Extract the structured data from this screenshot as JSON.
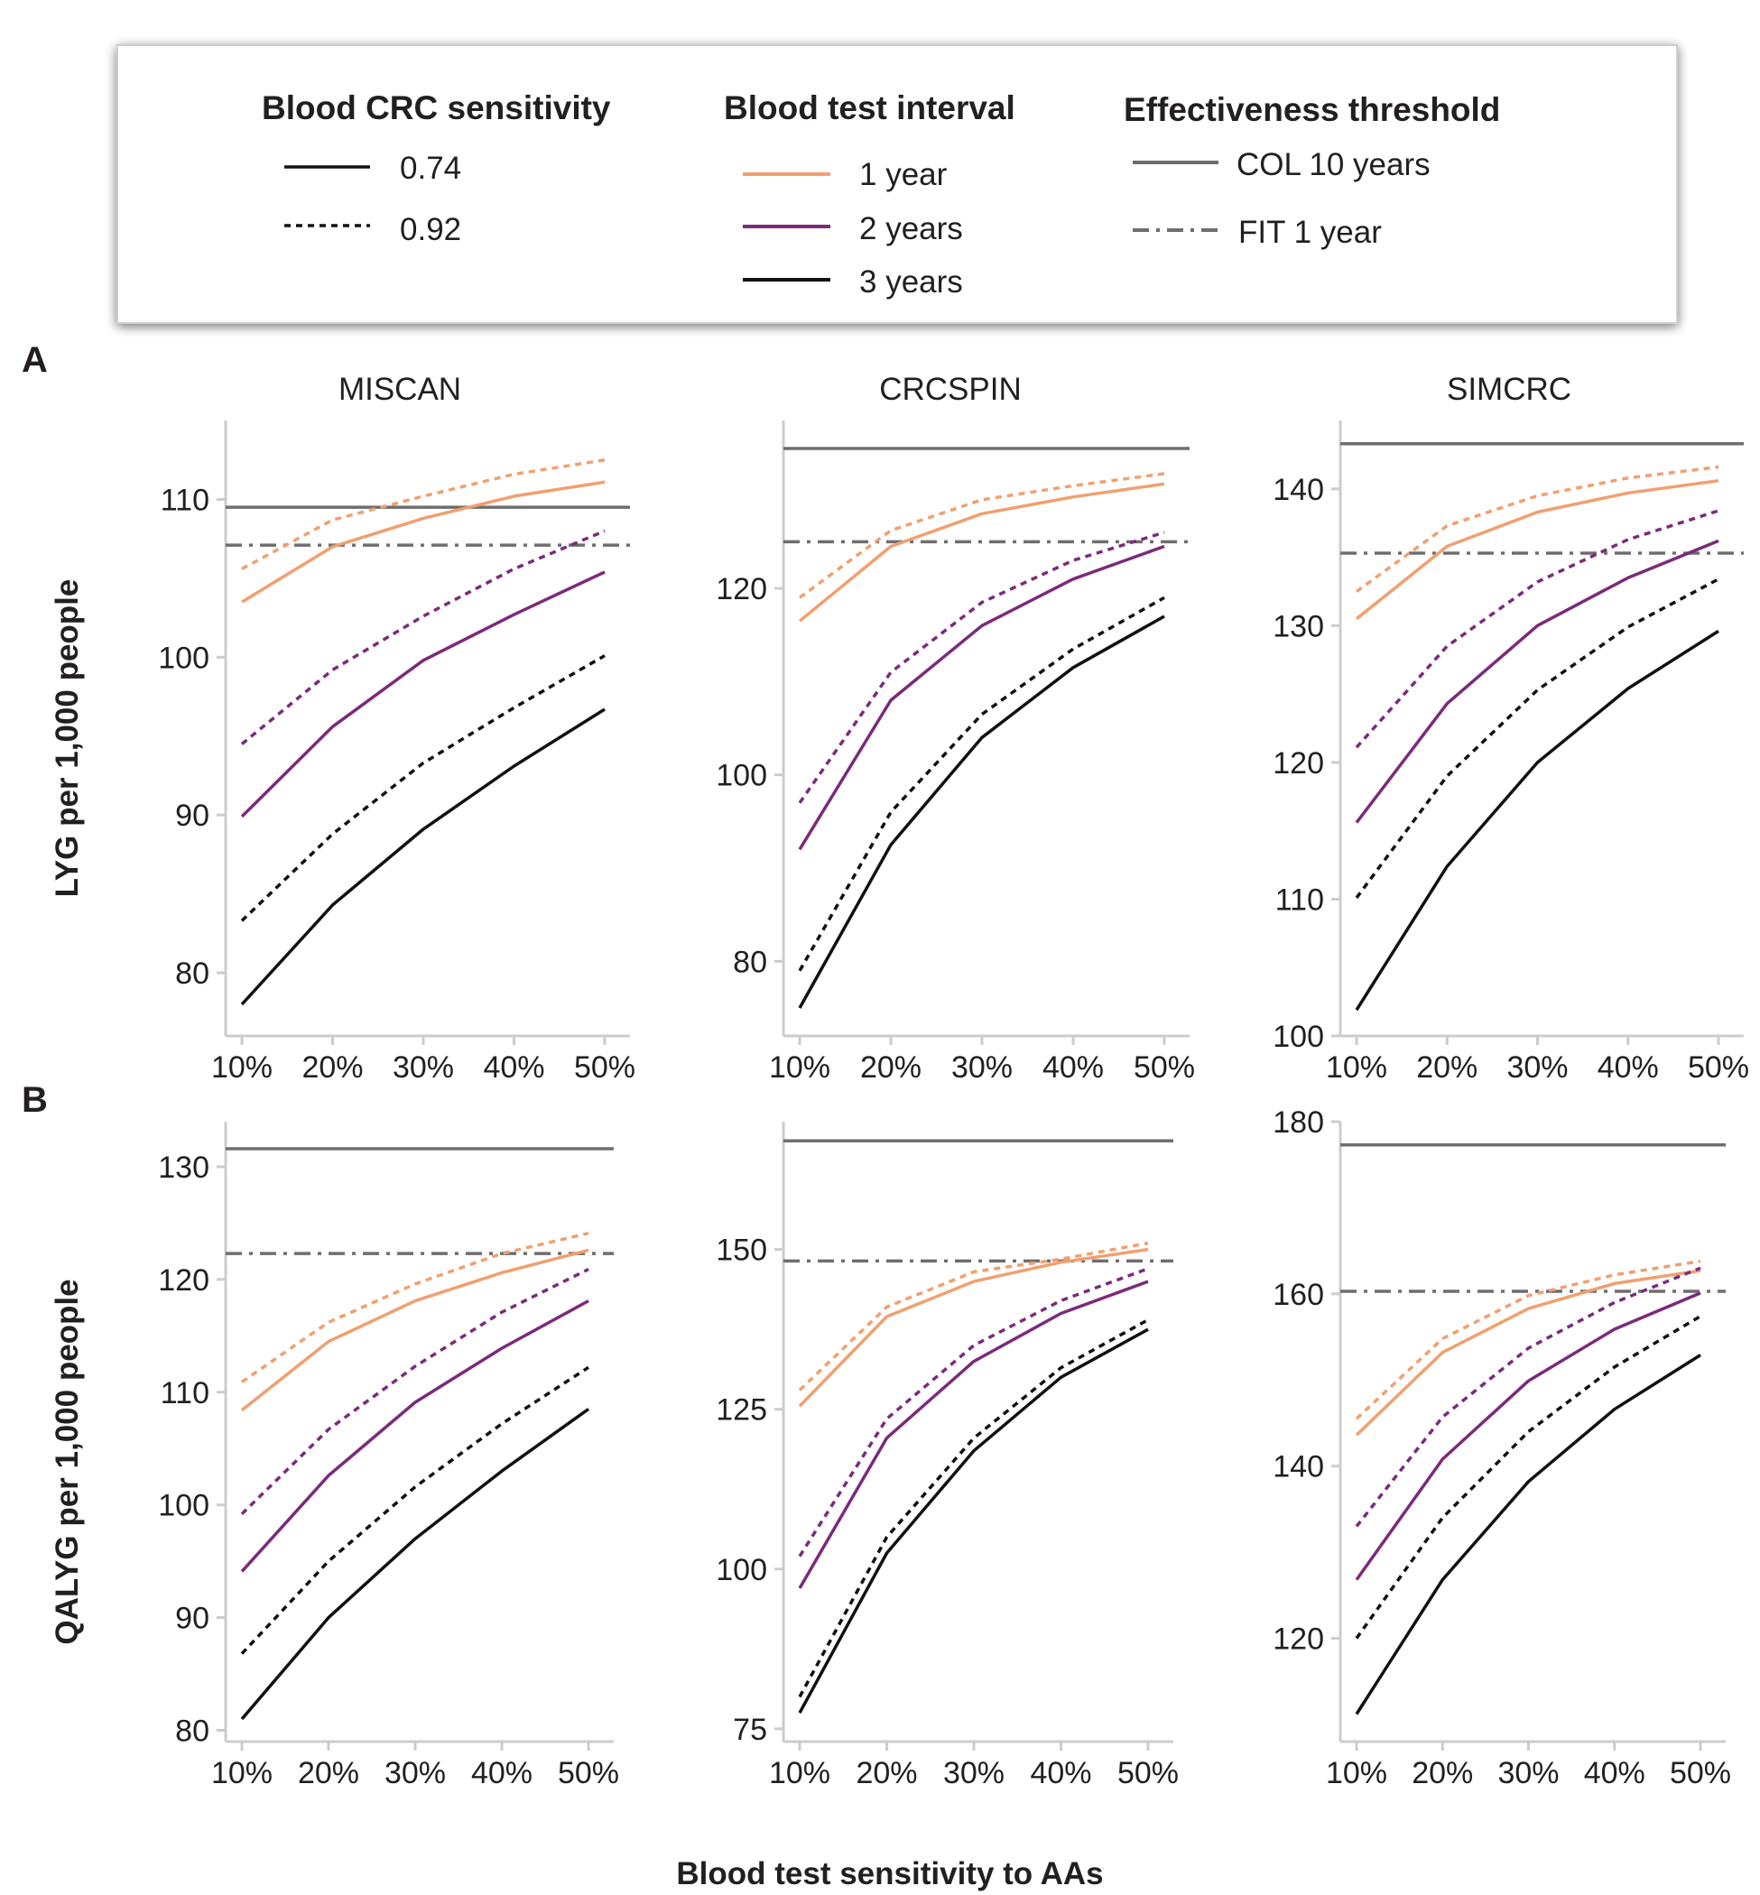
{
  "legend": {
    "crc_title": "Blood CRC sensitivity",
    "crc_items": [
      {
        "label": "0.74",
        "dash": "solid"
      },
      {
        "label": "0.92",
        "dash": "dotted"
      }
    ],
    "interval_title": "Blood test interval",
    "interval_items": [
      {
        "label": "1 year",
        "color": "#f0a070"
      },
      {
        "label": "2 years",
        "color": "#7b2b7a"
      },
      {
        "label": "3 years",
        "color": "#111111"
      }
    ],
    "threshold_title": "Effectiveness threshold",
    "threshold_items": [
      {
        "label": "COL 10 years",
        "dash": "solid"
      },
      {
        "label": "FIT 1 year",
        "dash": "dashdot"
      }
    ]
  },
  "colors": {
    "one_year": "#f0a070",
    "two_years": "#7b2b7a",
    "three_years": "#111111",
    "threshold": "#6e6e6e",
    "axis": "#cccccc"
  },
  "xlabel": "Blood test sensitivity to AAs",
  "chart_data": [
    {
      "type": "line",
      "row": "A",
      "model": "MISCAN",
      "ylabel": "LYG per 1,000 people",
      "x": [
        10,
        20,
        30,
        40,
        50
      ],
      "x_tick_labels": [
        "10%",
        "20%",
        "30%",
        "40%",
        "50%"
      ],
      "y_ticks": [
        80,
        90,
        100,
        110
      ],
      "ylim": [
        76,
        115
      ],
      "thresholds": {
        "col_10_years": 109.5,
        "fit_1_year": 107.1
      },
      "series": [
        {
          "interval": "1 year",
          "sensitivity": "0.74",
          "values": [
            103.5,
            107.0,
            108.8,
            110.2,
            111.1
          ]
        },
        {
          "interval": "1 year",
          "sensitivity": "0.92",
          "values": [
            105.6,
            108.7,
            110.2,
            111.6,
            112.5
          ]
        },
        {
          "interval": "2 years",
          "sensitivity": "0.74",
          "values": [
            89.9,
            95.6,
            99.8,
            102.7,
            105.4
          ]
        },
        {
          "interval": "2 years",
          "sensitivity": "0.92",
          "values": [
            94.5,
            99.2,
            102.6,
            105.6,
            108.0
          ]
        },
        {
          "interval": "3 years",
          "sensitivity": "0.74",
          "values": [
            78.0,
            84.3,
            89.1,
            93.1,
            96.7
          ]
        },
        {
          "interval": "3 years",
          "sensitivity": "0.92",
          "values": [
            83.3,
            88.8,
            93.3,
            96.8,
            100.1
          ]
        }
      ]
    },
    {
      "type": "line",
      "row": "A",
      "model": "CRCSPIN",
      "ylabel": "LYG per 1,000 people",
      "x": [
        10,
        20,
        30,
        40,
        50
      ],
      "x_tick_labels": [
        "10%",
        "20%",
        "30%",
        "40%",
        "50%"
      ],
      "y_ticks": [
        80,
        100,
        120
      ],
      "ylim": [
        72,
        138
      ],
      "thresholds": {
        "col_10_years": 135.0,
        "fit_1_year": 125.0
      },
      "series": [
        {
          "interval": "1 year",
          "sensitivity": "0.74",
          "values": [
            116.5,
            124.5,
            128.0,
            129.8,
            131.2
          ]
        },
        {
          "interval": "1 year",
          "sensitivity": "0.92",
          "values": [
            119.0,
            126.2,
            129.5,
            131.0,
            132.3
          ]
        },
        {
          "interval": "2 years",
          "sensitivity": "0.74",
          "values": [
            92.0,
            108.0,
            116.0,
            121.0,
            124.5
          ]
        },
        {
          "interval": "2 years",
          "sensitivity": "0.92",
          "values": [
            97.0,
            111.0,
            118.5,
            123.0,
            126.0
          ]
        },
        {
          "interval": "3 years",
          "sensitivity": "0.74",
          "values": [
            75.0,
            92.5,
            104.0,
            111.5,
            117.0
          ]
        },
        {
          "interval": "3 years",
          "sensitivity": "0.92",
          "values": [
            79.0,
            96.0,
            106.5,
            113.5,
            119.0
          ]
        }
      ]
    },
    {
      "type": "line",
      "row": "A",
      "model": "SIMCRC",
      "ylabel": "LYG per 1,000 people",
      "x": [
        10,
        20,
        30,
        40,
        50
      ],
      "x_tick_labels": [
        "10%",
        "20%",
        "30%",
        "40%",
        "50%"
      ],
      "y_ticks": [
        100,
        110,
        120,
        130,
        140
      ],
      "ylim": [
        100,
        145
      ],
      "thresholds": {
        "col_10_years": 143.3,
        "fit_1_year": 135.3
      },
      "series": [
        {
          "interval": "1 year",
          "sensitivity": "0.74",
          "values": [
            130.5,
            135.8,
            138.3,
            139.7,
            140.6
          ]
        },
        {
          "interval": "1 year",
          "sensitivity": "0.92",
          "values": [
            132.5,
            137.3,
            139.5,
            140.8,
            141.6
          ]
        },
        {
          "interval": "2 years",
          "sensitivity": "0.74",
          "values": [
            115.6,
            124.3,
            130.0,
            133.5,
            136.2
          ]
        },
        {
          "interval": "2 years",
          "sensitivity": "0.92",
          "values": [
            121.1,
            128.5,
            133.2,
            136.3,
            138.4
          ]
        },
        {
          "interval": "3 years",
          "sensitivity": "0.74",
          "values": [
            101.9,
            112.4,
            120.0,
            125.4,
            129.6
          ]
        },
        {
          "interval": "3 years",
          "sensitivity": "0.92",
          "values": [
            110.1,
            119.0,
            125.3,
            129.9,
            133.4
          ]
        }
      ]
    },
    {
      "type": "line",
      "row": "B",
      "model": "MISCAN",
      "ylabel": "QALYG per 1,000 people",
      "x": [
        10,
        20,
        30,
        40,
        50
      ],
      "x_tick_labels": [
        "10%",
        "20%",
        "30%",
        "40%",
        "50%"
      ],
      "y_ticks": [
        80,
        90,
        100,
        110,
        120,
        130
      ],
      "ylim": [
        79,
        134
      ],
      "thresholds": {
        "col_10_years": 131.6,
        "fit_1_year": 122.3
      },
      "series": [
        {
          "interval": "1 year",
          "sensitivity": "0.74",
          "values": [
            108.4,
            114.5,
            118.1,
            120.6,
            122.6
          ]
        },
        {
          "interval": "1 year",
          "sensitivity": "0.92",
          "values": [
            110.9,
            116.2,
            119.6,
            122.3,
            124.1
          ]
        },
        {
          "interval": "2 years",
          "sensitivity": "0.74",
          "values": [
            94.1,
            102.6,
            109.1,
            113.9,
            118.1
          ]
        },
        {
          "interval": "2 years",
          "sensitivity": "0.92",
          "values": [
            99.2,
            106.7,
            112.3,
            117.1,
            120.9
          ]
        },
        {
          "interval": "3 years",
          "sensitivity": "0.74",
          "values": [
            81.0,
            90.0,
            97.0,
            103.0,
            108.5
          ]
        },
        {
          "interval": "3 years",
          "sensitivity": "0.92",
          "values": [
            86.8,
            95.0,
            101.6,
            107.2,
            112.2
          ]
        }
      ]
    },
    {
      "type": "line",
      "row": "B",
      "model": "CRCSPIN",
      "ylabel": "QALYG per 1,000 people",
      "x": [
        10,
        20,
        30,
        40,
        50
      ],
      "x_tick_labels": [
        "10%",
        "20%",
        "30%",
        "40%",
        "50%"
      ],
      "y_ticks": [
        75,
        100,
        125,
        150
      ],
      "ylim": [
        73,
        170
      ],
      "thresholds": {
        "col_10_years": 167.0,
        "fit_1_year": 148.2
      },
      "series": [
        {
          "interval": "1 year",
          "sensitivity": "0.74",
          "values": [
            125.5,
            139.5,
            145.0,
            148.0,
            150.0
          ]
        },
        {
          "interval": "1 year",
          "sensitivity": "0.92",
          "values": [
            128.0,
            141.0,
            146.5,
            148.5,
            151.0
          ]
        },
        {
          "interval": "2 years",
          "sensitivity": "0.74",
          "values": [
            97.0,
            120.5,
            132.5,
            140.0,
            145.0
          ]
        },
        {
          "interval": "2 years",
          "sensitivity": "0.92",
          "values": [
            102.0,
            123.5,
            135.0,
            142.0,
            147.0
          ]
        },
        {
          "interval": "3 years",
          "sensitivity": "0.74",
          "values": [
            77.5,
            102.5,
            118.5,
            130.0,
            137.5
          ]
        },
        {
          "interval": "3 years",
          "sensitivity": "0.92",
          "values": [
            80.0,
            105.0,
            120.5,
            131.5,
            139.0
          ]
        }
      ]
    },
    {
      "type": "line",
      "row": "B",
      "model": "SIMCRC",
      "ylabel": "QALYG per 1,000 people",
      "x": [
        10,
        20,
        30,
        40,
        50
      ],
      "x_tick_labels": [
        "10%",
        "20%",
        "30%",
        "40%",
        "50%"
      ],
      "y_ticks": [
        120,
        140,
        160,
        180
      ],
      "ylim": [
        108,
        180
      ],
      "thresholds": {
        "col_10_years": 177.3,
        "fit_1_year": 160.3
      },
      "series": [
        {
          "interval": "1 year",
          "sensitivity": "0.74",
          "values": [
            143.6,
            153.2,
            158.3,
            161.2,
            162.7
          ]
        },
        {
          "interval": "1 year",
          "sensitivity": "0.92",
          "values": [
            145.5,
            154.8,
            159.8,
            162.2,
            163.8
          ]
        },
        {
          "interval": "2 years",
          "sensitivity": "0.74",
          "values": [
            126.8,
            140.8,
            149.9,
            155.9,
            160.1
          ]
        },
        {
          "interval": "2 years",
          "sensitivity": "0.92",
          "values": [
            133.0,
            145.7,
            153.7,
            159.0,
            163.0
          ]
        },
        {
          "interval": "3 years",
          "sensitivity": "0.74",
          "values": [
            111.2,
            126.8,
            138.2,
            146.6,
            152.9
          ]
        },
        {
          "interval": "3 years",
          "sensitivity": "0.92",
          "values": [
            120.0,
            134.0,
            144.0,
            151.5,
            157.4
          ]
        }
      ]
    }
  ]
}
